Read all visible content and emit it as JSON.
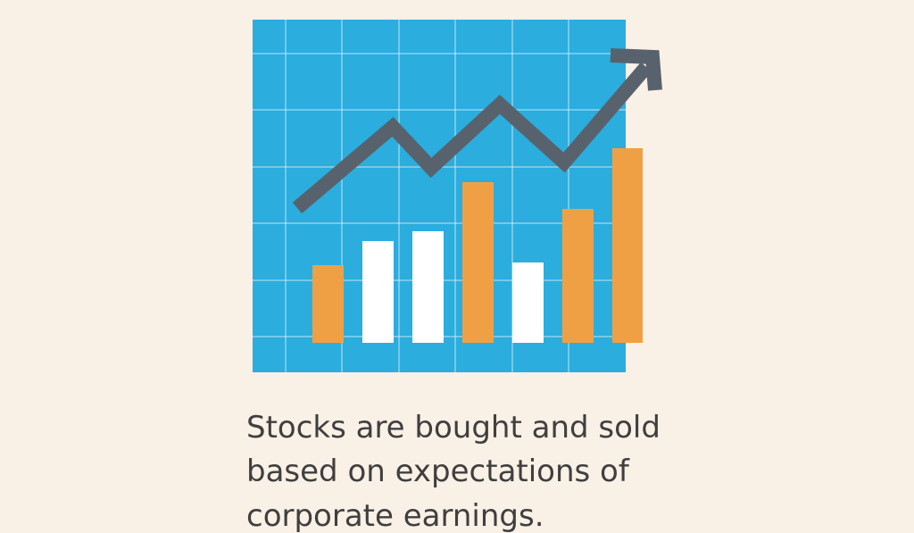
{
  "caption": {
    "lines": [
      "Stocks are bought and sold",
      "based on expectations of",
      "corporate earnings."
    ]
  }
}
